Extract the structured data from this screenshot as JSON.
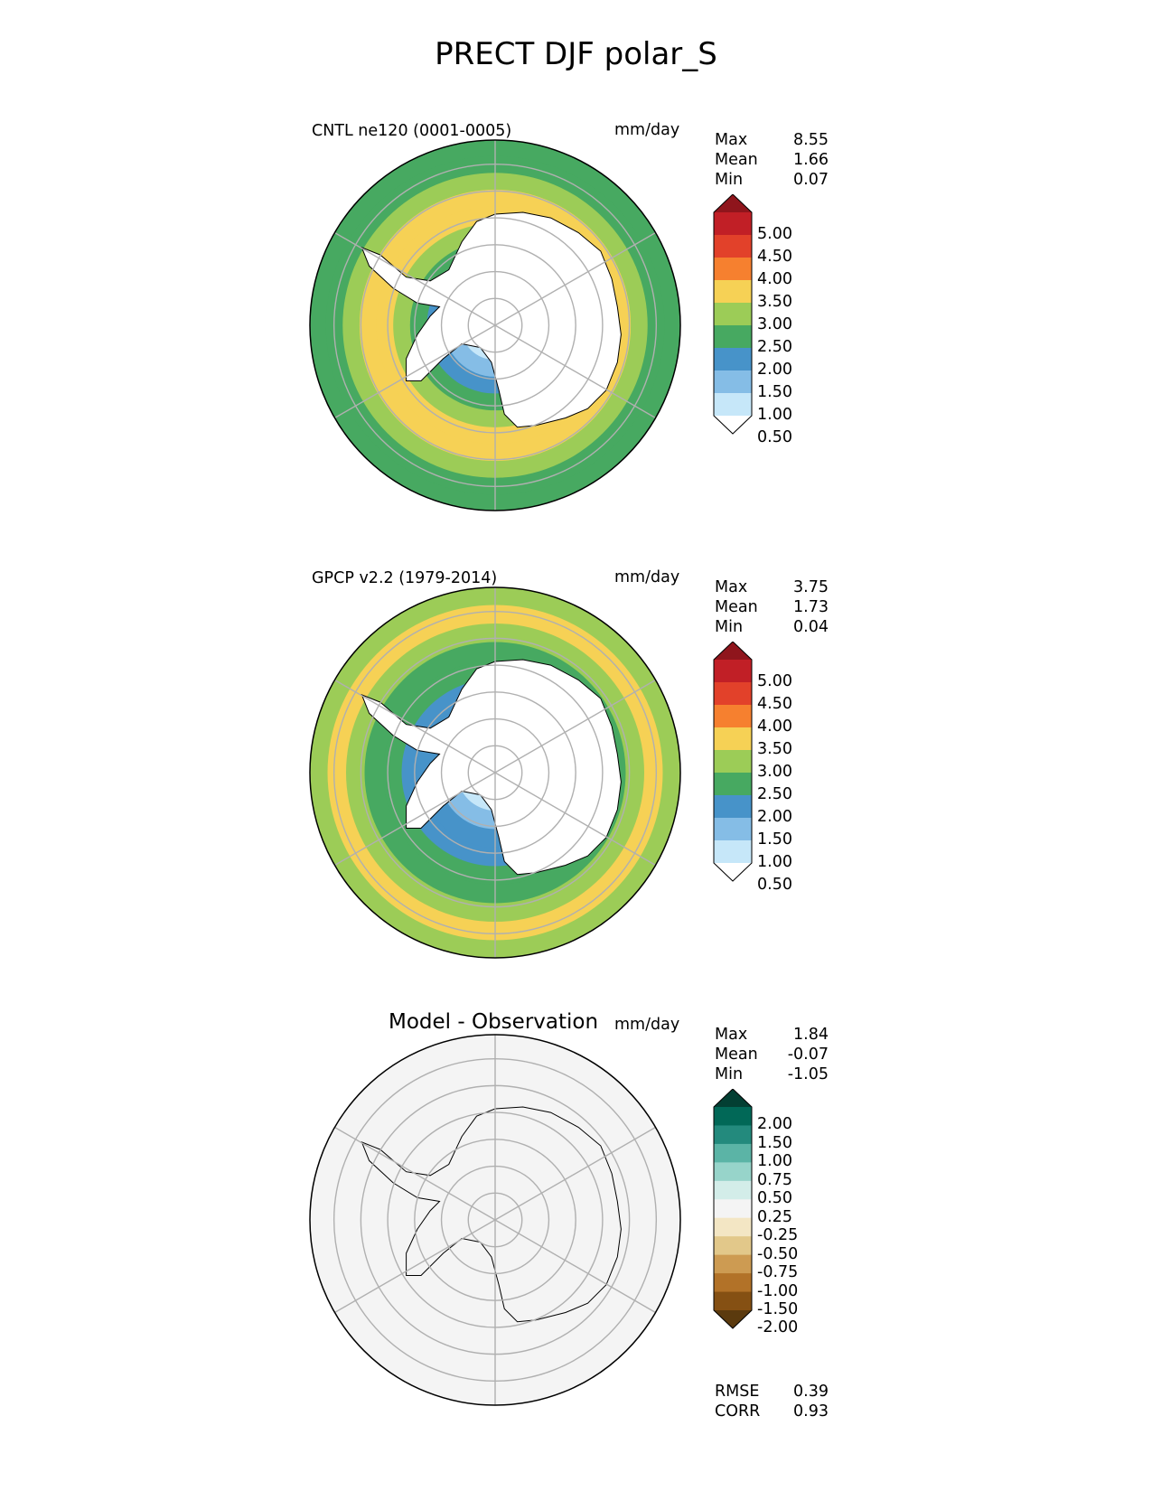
{
  "title": "PRECT DJF polar_S",
  "colors": {
    "abs_levels": [
      "#ffffff",
      "#c6e7f9",
      "#85bde6",
      "#4793c9",
      "#47a961",
      "#9ccc57",
      "#f6d155",
      "#f6802f",
      "#e2412a",
      "#c11f26",
      "#8f151c"
    ],
    "diff_levels": [
      "#5b3a0e",
      "#855013",
      "#b27228",
      "#cd9b52",
      "#e2c88a",
      "#f3e6c4",
      "#f4f4f4",
      "#d3ede9",
      "#97d4ca",
      "#5bb4a6",
      "#238a7d",
      "#016857",
      "#033f33"
    ],
    "coastline": "#000000",
    "grid": "#b0b0b0"
  },
  "panels": [
    {
      "id": "test",
      "label": "CNTL ne120 (0001-0005)",
      "units": "mm/day",
      "stats": [
        {
          "name": "Max",
          "value": "8.55"
        },
        {
          "name": "Mean",
          "value": "1.66"
        },
        {
          "name": "Min",
          "value": "0.07"
        }
      ],
      "colorbar": {
        "type": "abs",
        "ticks": [
          "5.00",
          "4.50",
          "4.00",
          "3.50",
          "3.00",
          "2.50",
          "2.00",
          "1.50",
          "1.00",
          "0.50"
        ]
      },
      "rings": [
        4,
        4,
        5,
        6,
        6,
        5,
        4,
        3,
        2,
        1,
        0
      ]
    },
    {
      "id": "reference",
      "label": "GPCP v2.2 (1979-2014)",
      "units": "mm/day",
      "stats": [
        {
          "name": "Max",
          "value": "3.75"
        },
        {
          "name": "Mean",
          "value": "1.73"
        },
        {
          "name": "Min",
          "value": "0.04"
        }
      ],
      "colorbar": {
        "type": "abs",
        "ticks": [
          "5.00",
          "4.50",
          "4.00",
          "3.50",
          "3.00",
          "2.50",
          "2.00",
          "1.50",
          "1.00",
          "0.50"
        ]
      },
      "rings": [
        5,
        6,
        5,
        4,
        4,
        3,
        3,
        2,
        1,
        0
      ]
    },
    {
      "id": "diff",
      "title": "Model - Observation",
      "units": "mm/day",
      "stats": [
        {
          "name": "Max",
          "value": "1.84"
        },
        {
          "name": "Mean",
          "value": "-0.07"
        },
        {
          "name": "Min",
          "value": "-1.05"
        }
      ],
      "colorbar": {
        "type": "diff",
        "ticks": [
          "2.00",
          "1.50",
          "1.00",
          "0.75",
          "0.50",
          "0.25",
          "-0.25",
          "-0.50",
          "-0.75",
          "-1.00",
          "-1.50",
          "-2.00"
        ]
      },
      "metrics": [
        {
          "name": "RMSE",
          "value": "0.39"
        },
        {
          "name": "CORR",
          "value": "0.93"
        }
      ],
      "rings": [
        6,
        6,
        6,
        6,
        6,
        6,
        6,
        6,
        6,
        6
      ]
    }
  ]
}
